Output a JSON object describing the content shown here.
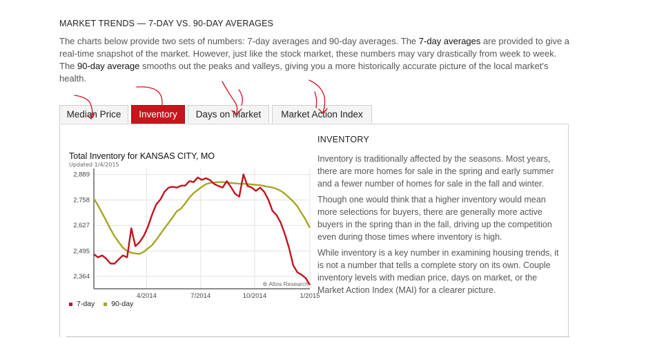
{
  "heading": "MARKET TRENDS — 7-DAY VS. 90-DAY AVERAGES",
  "intro": {
    "part1": "The charts below provide two sets of numbers: 7-day averages and 90-day averages. The ",
    "bold1": "7-day averages",
    "part2": " are provided to give a real-time snapshot of the market. However, just like the stock market, these numbers may vary drastically from week to week. The ",
    "bold2": "90-day average",
    "part3": " smooths out the peaks and valleys, giving you a more historically accurate picture of the local market's health."
  },
  "tabs": [
    {
      "label": "Median Price",
      "active": false
    },
    {
      "label": "Inventory",
      "active": true
    },
    {
      "label": "Days on Market",
      "active": false
    },
    {
      "label": "Market Action Index",
      "active": false
    }
  ],
  "chart": {
    "title": "Total Inventory for KANSAS CITY, MO",
    "updated": "Updated 1/4/2015",
    "watermark": "⊛ Altos Research"
  },
  "chart_data": {
    "type": "line",
    "title": "Total Inventory for KANSAS CITY, MO",
    "xlabel": "",
    "ylabel": "",
    "x_ticks": [
      "4/2014",
      "7/2014",
      "10/2014",
      "1/2015"
    ],
    "y_ticks": [
      2364,
      2495,
      2627,
      2758,
      2889
    ],
    "y_tick_labels": [
      "2,364",
      "2,495",
      "2,627",
      "2,758",
      "2,889"
    ],
    "ylim": [
      2300,
      2920
    ],
    "grid": true,
    "legend": "bottom-left",
    "x_weeks": [
      0,
      1,
      2,
      3,
      4,
      5,
      6,
      7,
      8,
      9,
      10,
      11,
      12,
      13,
      14,
      15,
      16,
      17,
      18,
      19,
      20,
      21,
      22,
      23,
      24,
      25,
      26,
      27,
      28,
      29,
      30,
      31,
      32,
      33,
      34,
      35,
      36,
      37,
      38,
      39,
      40,
      41,
      42,
      43,
      44,
      45,
      46,
      47,
      48,
      49,
      50,
      51,
      52
    ],
    "series": [
      {
        "name": "7-day",
        "color": "#c1121c",
        "values": [
          2478,
          2462,
          2472,
          2455,
          2430,
          2430,
          2452,
          2472,
          2462,
          2612,
          2520,
          2540,
          2572,
          2620,
          2682,
          2735,
          2760,
          2800,
          2822,
          2826,
          2822,
          2832,
          2832,
          2855,
          2850,
          2874,
          2862,
          2870,
          2860,
          2840,
          2830,
          2822,
          2855,
          2825,
          2790,
          2775,
          2890,
          2830,
          2822,
          2805,
          2822,
          2800,
          2760,
          2702,
          2680,
          2640,
          2580,
          2510,
          2420,
          2385,
          2372,
          2355,
          2320
        ]
      },
      {
        "name": "90-day",
        "color": "#a5a524",
        "values": [
          2765,
          2730,
          2690,
          2650,
          2608,
          2570,
          2540,
          2512,
          2495,
          2486,
          2482,
          2480,
          2490,
          2508,
          2525,
          2552,
          2582,
          2612,
          2640,
          2670,
          2700,
          2714,
          2740,
          2770,
          2793,
          2810,
          2826,
          2840,
          2846,
          2848,
          2850,
          2850,
          2848,
          2846,
          2844,
          2842,
          2842,
          2840,
          2838,
          2836,
          2834,
          2830,
          2826,
          2822,
          2815,
          2805,
          2790,
          2770,
          2750,
          2725,
          2690,
          2655,
          2615
        ]
      }
    ]
  },
  "info": {
    "title": "INVENTORY",
    "paragraphs": [
      "Inventory is traditionally affected by the seasons. Most years, there are more homes for sale in the spring and early summer and a fewer number of homes for sale in the fall and winter.",
      "Though one would think that a higher inventory would mean more selections for buyers, there are generally more active buyers in the spring than in the fall, driving up the competition even during those times where inventory is high.",
      "While inventory is a key number in examining housing trends, it is not a number that tells a complete story on its own. Couple inventory levels with median price, days on market, or the Market Action Index (MAI) for a clearer picture."
    ]
  }
}
